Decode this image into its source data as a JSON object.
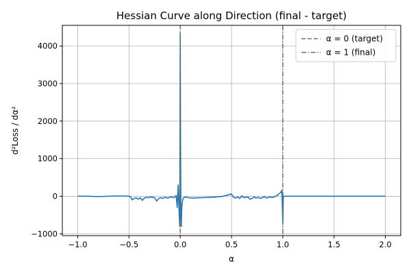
{
  "chart_data": {
    "type": "line",
    "title": "Hessian Curve along Direction (final - target)",
    "xlabel": "α",
    "ylabel": "d²Loss / dα²",
    "xlim": [
      -1.15,
      2.15
    ],
    "ylim": [
      -1050,
      4550
    ],
    "xticks": [
      -1.0,
      -0.5,
      0.0,
      0.5,
      1.0,
      1.5,
      2.0
    ],
    "xtick_labels": [
      "−1.0",
      "−0.5",
      "0.0",
      "0.5",
      "1.0",
      "1.5",
      "2.0"
    ],
    "yticks": [
      -1000,
      0,
      1000,
      2000,
      3000,
      4000
    ],
    "ytick_labels": [
      "−1000",
      "0",
      "1000",
      "2000",
      "3000",
      "4000"
    ],
    "grid": true,
    "legend_position": "top-right",
    "colors": {
      "series": "#1f77b4",
      "reference": "#6e6e6e",
      "grid": "#b0b0b0"
    },
    "series": [
      {
        "name": "",
        "x": [
          -1.0,
          -0.9,
          -0.8,
          -0.7,
          -0.6,
          -0.55,
          -0.5,
          -0.48,
          -0.47,
          -0.45,
          -0.43,
          -0.41,
          -0.39,
          -0.37,
          -0.35,
          -0.33,
          -0.31,
          -0.29,
          -0.27,
          -0.25,
          -0.23,
          -0.21,
          -0.19,
          -0.17,
          -0.15,
          -0.12,
          -0.09,
          -0.06,
          -0.04,
          -0.03,
          -0.02,
          -0.01,
          -0.005,
          0.0,
          0.003,
          0.006,
          0.01,
          0.015,
          0.02,
          0.03,
          0.05,
          0.08,
          0.12,
          0.2,
          0.3,
          0.4,
          0.45,
          0.48,
          0.5,
          0.52,
          0.54,
          0.56,
          0.58,
          0.6,
          0.62,
          0.64,
          0.66,
          0.68,
          0.7,
          0.72,
          0.74,
          0.76,
          0.78,
          0.8,
          0.82,
          0.84,
          0.86,
          0.88,
          0.9,
          0.92,
          0.94,
          0.96,
          0.98,
          0.99,
          0.995,
          1.0,
          1.005,
          1.01,
          1.02,
          1.05,
          1.2,
          1.5,
          1.8,
          2.0
        ],
        "y": [
          0,
          0,
          -10,
          0,
          5,
          5,
          0,
          -30,
          -100,
          -60,
          -40,
          -80,
          -40,
          -110,
          -50,
          -30,
          -40,
          -20,
          -30,
          -40,
          -130,
          -60,
          -40,
          -60,
          -30,
          -50,
          -20,
          -40,
          20,
          -300,
          300,
          -500,
          -800,
          4300,
          1500,
          -400,
          -800,
          -300,
          -150,
          -50,
          -20,
          -40,
          -50,
          -40,
          -30,
          -10,
          20,
          50,
          60,
          -30,
          -50,
          -20,
          -60,
          10,
          -40,
          -30,
          -20,
          -80,
          -60,
          -20,
          -50,
          -30,
          -60,
          -40,
          -10,
          -50,
          -30,
          -20,
          -40,
          -10,
          10,
          60,
          100,
          160,
          -200,
          -750,
          0,
          0,
          0,
          0,
          0,
          0,
          0,
          0
        ]
      }
    ],
    "reference_lines": [
      {
        "name": "α = 0 (target)",
        "x": 0,
        "style": "dashed"
      },
      {
        "name": "α = 1 (final)",
        "x": 1,
        "style": "dashdot"
      }
    ]
  }
}
